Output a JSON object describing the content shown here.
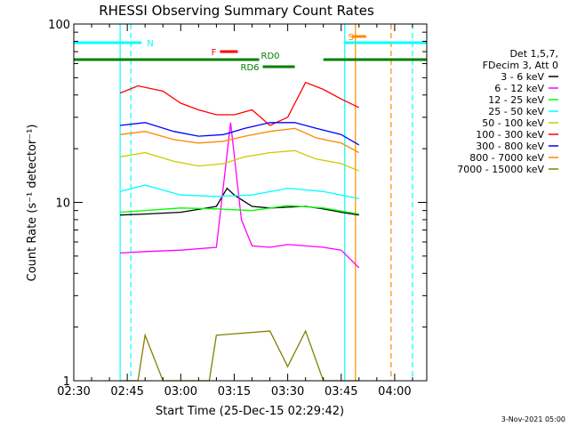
{
  "chart_data": {
    "type": "line",
    "title": "RHESSI Observing Summary Count Rates",
    "xlabel": "Start Time (25-Dec-15 02:29:42)",
    "ylabel": "Count Rate (s⁻¹ detector⁻¹)",
    "y_scale": "log",
    "xlim": [
      "02:30",
      "04:09"
    ],
    "ylim": [
      1,
      100
    ],
    "x_ticks": [
      "02:30",
      "02:45",
      "03:00",
      "03:15",
      "03:30",
      "03:45",
      "04:00"
    ],
    "y_ticks": [
      "1",
      "10",
      "100"
    ],
    "data_start": "02:43",
    "data_end": "03:50",
    "legend": {
      "placement": "right",
      "header": [
        "Det 1,5,7,",
        "FDecim 3, Att 0"
      ]
    },
    "series": [
      {
        "name": "3 - 6 keV",
        "color": "#000000",
        "x": [
          "02:43",
          "02:50",
          "03:00",
          "03:10",
          "03:13",
          "03:15",
          "03:20",
          "03:25",
          "03:30",
          "03:35",
          "03:40",
          "03:45",
          "03:50"
        ],
        "values": [
          8.5,
          8.6,
          8.8,
          9.5,
          12,
          11,
          9.5,
          9.3,
          9.4,
          9.5,
          9.2,
          8.8,
          8.5
        ]
      },
      {
        "name": "6 - 12 keV",
        "color": "#ff00ff",
        "x": [
          "02:43",
          "02:50",
          "03:00",
          "03:10",
          "03:14",
          "03:17",
          "03:20",
          "03:25",
          "03:30",
          "03:35",
          "03:40",
          "03:45",
          "03:50"
        ],
        "values": [
          5.2,
          5.3,
          5.4,
          5.6,
          28,
          8,
          5.7,
          5.6,
          5.8,
          5.7,
          5.6,
          5.4,
          4.3
        ]
      },
      {
        "name": "12 - 25 keV",
        "color": "#00ff00",
        "x": [
          "02:43",
          "02:50",
          "03:00",
          "03:10",
          "03:20",
          "03:30",
          "03:40",
          "03:50"
        ],
        "values": [
          8.8,
          9.0,
          9.3,
          9.2,
          9.0,
          9.6,
          9.3,
          8.6
        ]
      },
      {
        "name": "25 - 50 keV",
        "color": "#00ffff",
        "x": [
          "02:43",
          "02:50",
          "03:00",
          "03:10",
          "03:20",
          "03:30",
          "03:40",
          "03:50"
        ],
        "values": [
          11.5,
          12.5,
          11.0,
          10.8,
          11.0,
          12.0,
          11.5,
          10.5
        ]
      },
      {
        "name": "50 - 100 keV",
        "color": "#cccc00",
        "x": [
          "02:43",
          "02:50",
          "02:58",
          "03:05",
          "03:12",
          "03:18",
          "03:25",
          "03:32",
          "03:38",
          "03:45",
          "03:50"
        ],
        "values": [
          18,
          19,
          17,
          16,
          16.5,
          18,
          19,
          19.5,
          17.5,
          16.5,
          15
        ]
      },
      {
        "name": "100 - 300 keV",
        "color": "#ff0000",
        "x": [
          "02:43",
          "02:48",
          "02:55",
          "03:00",
          "03:05",
          "03:10",
          "03:15",
          "03:20",
          "03:25",
          "03:30",
          "03:35",
          "03:40",
          "03:45",
          "03:50"
        ],
        "values": [
          41,
          45,
          42,
          36,
          33,
          31,
          31,
          33,
          27,
          30,
          47,
          43,
          38,
          34
        ]
      },
      {
        "name": "300 - 800 keV",
        "color": "#0000ff",
        "x": [
          "02:43",
          "02:50",
          "02:58",
          "03:05",
          "03:12",
          "03:18",
          "03:25",
          "03:32",
          "03:38",
          "03:45",
          "03:50"
        ],
        "values": [
          27,
          28,
          25,
          23.5,
          24,
          26,
          28,
          28,
          26,
          24,
          21
        ]
      },
      {
        "name": "800 - 7000 keV",
        "color": "#ff8800",
        "x": [
          "02:43",
          "02:50",
          "02:58",
          "03:05",
          "03:12",
          "03:18",
          "03:25",
          "03:32",
          "03:38",
          "03:45",
          "03:50"
        ],
        "values": [
          24,
          25,
          22.5,
          21.5,
          22,
          23.5,
          25,
          26,
          23,
          21.5,
          19
        ]
      },
      {
        "name": "7000 - 15000 keV",
        "color": "#808000",
        "x": [
          "02:43",
          "02:48",
          "02:50",
          "02:55",
          "03:00",
          "03:08",
          "03:10",
          "03:25",
          "03:30",
          "03:35",
          "03:40",
          "03:50"
        ],
        "values": [
          1,
          1,
          1.8,
          1,
          1,
          1,
          1.8,
          1.9,
          1.2,
          1.9,
          1,
          1
        ]
      }
    ],
    "flag_bars": [
      {
        "label": "N",
        "color": "#00ffff",
        "spans": [
          [
            "02:30",
            "02:49"
          ],
          [
            "03:46",
            "04:09"
          ]
        ]
      },
      {
        "label": "F",
        "color": "#ff0000",
        "spans": [
          [
            "03:11",
            "03:16"
          ]
        ]
      },
      {
        "label": "S",
        "color": "#ff8800",
        "spans": [
          [
            "03:48",
            "03:52"
          ]
        ]
      },
      {
        "label": "RD0",
        "color": "#008000",
        "spans": [
          [
            "02:30",
            "03:22"
          ],
          [
            "03:40",
            "04:09"
          ]
        ]
      },
      {
        "label": "RD6",
        "color": "#008000",
        "spans": [
          [
            "03:23",
            "03:32"
          ]
        ]
      }
    ],
    "vertical_markers": [
      {
        "time": "02:43",
        "color": "#00ffff",
        "style": "solid"
      },
      {
        "time": "02:46",
        "color": "#00ffff",
        "style": "dashed"
      },
      {
        "time": "03:46",
        "color": "#00ffff",
        "style": "solid"
      },
      {
        "time": "04:05",
        "color": "#00ffff",
        "style": "dashed"
      },
      {
        "time": "03:49",
        "color": "#ff8800",
        "style": "solid"
      },
      {
        "time": "03:59",
        "color": "#ff8800",
        "style": "dashed"
      }
    ]
  },
  "footer_date": "3-Nov-2021 05:00"
}
